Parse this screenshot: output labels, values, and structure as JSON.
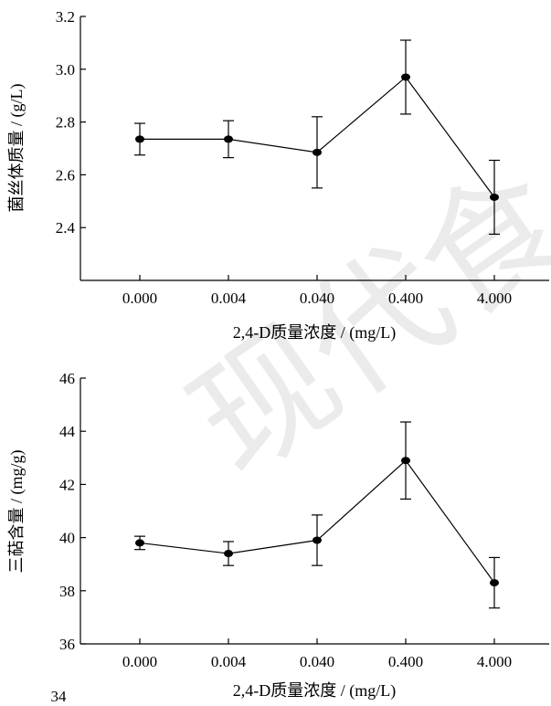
{
  "watermark": "现代食",
  "page_number": "34",
  "chart_data": [
    {
      "type": "line",
      "categories": [
        "0.000",
        "0.004",
        "0.040",
        "0.400",
        "4.000"
      ],
      "series": [
        {
          "values": [
            2.735,
            2.735,
            2.685,
            2.97,
            2.515
          ],
          "errors": [
            0.06,
            0.07,
            0.135,
            0.14,
            0.14
          ]
        }
      ],
      "xlabel": "2,4-D质量浓度 / (mg/L)",
      "ylabel": "菌丝体质量 / (g/L)",
      "ylim": [
        2.2,
        3.2
      ],
      "yticks": [
        "3.2",
        "3.0",
        "2.8",
        "2.6",
        "2.4"
      ],
      "grid": false
    },
    {
      "type": "line",
      "categories": [
        "0.000",
        "0.004",
        "0.040",
        "0.400",
        "4.000"
      ],
      "series": [
        {
          "values": [
            39.8,
            39.4,
            39.9,
            42.9,
            38.3
          ],
          "errors": [
            0.25,
            0.45,
            0.95,
            1.45,
            0.95
          ]
        }
      ],
      "xlabel": "2,4-D质量浓度 / (mg/L)",
      "ylabel": "三萜含量 / (mg/g)",
      "ylim": [
        36,
        46
      ],
      "yticks": [
        "46",
        "44",
        "42",
        "40",
        "38",
        "36"
      ],
      "grid": false
    }
  ]
}
